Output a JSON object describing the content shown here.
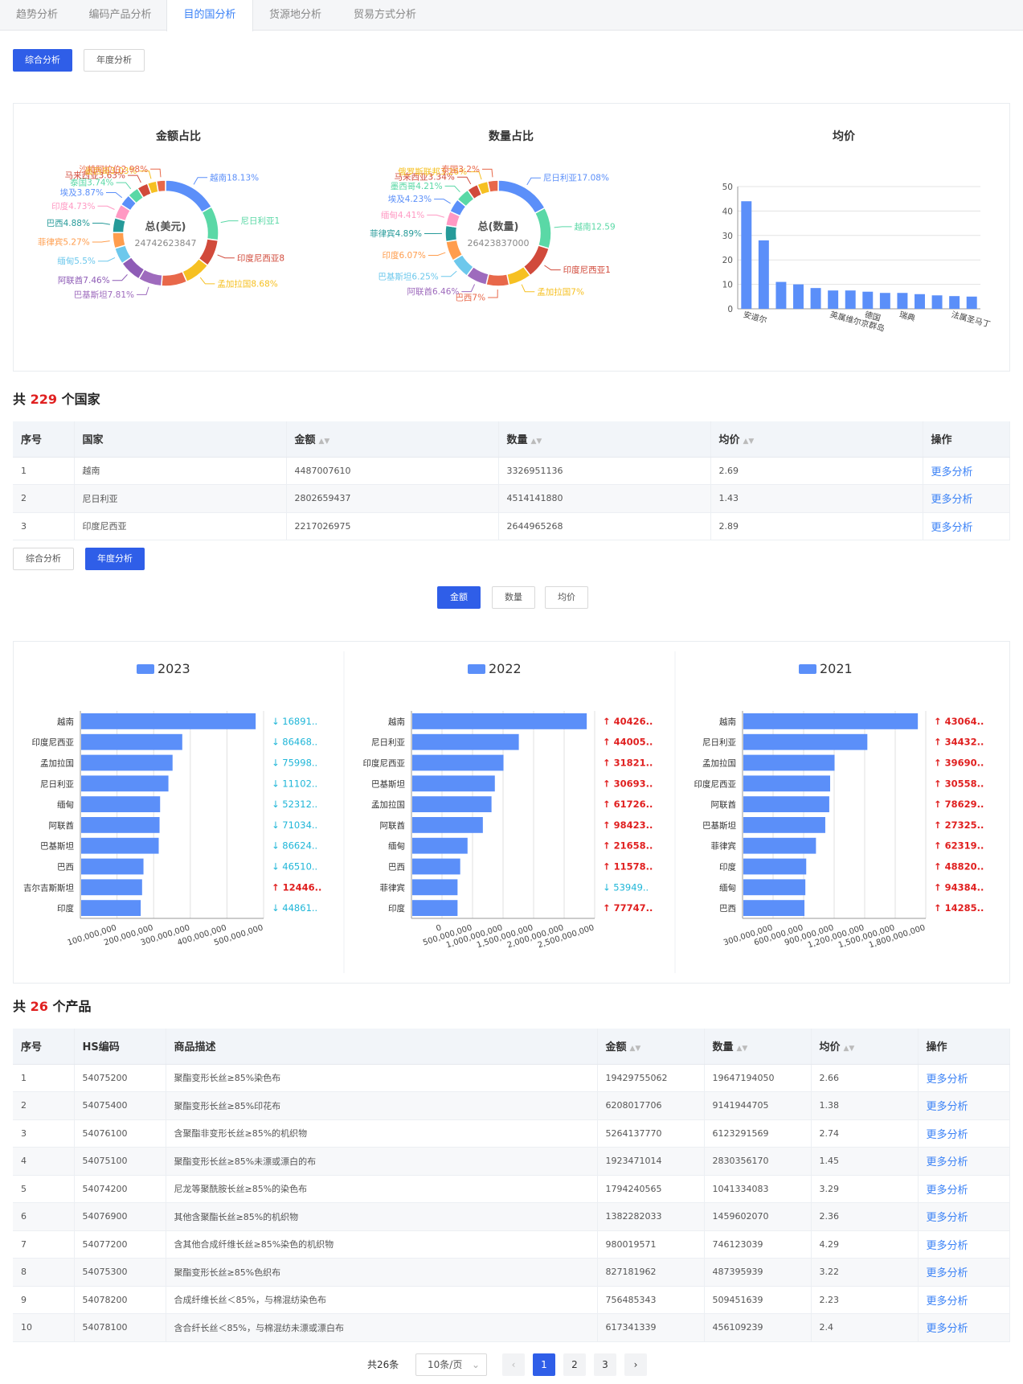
{
  "tabs": [
    "趋势分析",
    "编码产品分析",
    "目的国分析",
    "货源地分析",
    "贸易方式分析"
  ],
  "active_tab": 2,
  "subtabs": [
    "综合分析",
    "年度分析"
  ],
  "metric_buttons": [
    "金额",
    "数量",
    "均价"
  ],
  "donut_amount": {
    "title": "金额占比",
    "center_label": "总(美元)",
    "center_value": "24742623847",
    "slices": [
      {
        "label": "越南18.13%",
        "pct": 18.13,
        "color": "#5b8ff9"
      },
      {
        "label": "尼日利亚1",
        "pct": 11.33,
        "color": "#5ad8a6"
      },
      {
        "label": "印度尼西亚8",
        "pct": 8.96,
        "color": "#d14a3b"
      },
      {
        "label": "孟加拉国8.68%",
        "pct": 8.68,
        "color": "#f6c022"
      },
      {
        "label": "",
        "pct": 8.5,
        "color": "#e8684a"
      },
      {
        "label": "巴基斯坦7.81%",
        "pct": 7.81,
        "color": "#9e6bbd"
      },
      {
        "label": "阿联酋7.46%",
        "pct": 7.46,
        "color": "#8e5cb6"
      },
      {
        "label": "缅甸5.5%",
        "pct": 5.5,
        "color": "#6dc8ec"
      },
      {
        "label": "菲律宾5.27%",
        "pct": 5.27,
        "color": "#ff9d4d"
      },
      {
        "label": "巴西4.88%",
        "pct": 4.88,
        "color": "#269a99"
      },
      {
        "label": "印度4.73%",
        "pct": 4.73,
        "color": "#ff99c3"
      },
      {
        "label": "埃及3.87%",
        "pct": 3.87,
        "color": "#5b8ff9"
      },
      {
        "label": "泰国3.74%",
        "pct": 3.74,
        "color": "#5ad8a6"
      },
      {
        "label": "马来西亚3.63%",
        "pct": 3.63,
        "color": "#d14a3b"
      },
      {
        "label": "墨西哥3.03%",
        "pct": 3.03,
        "color": "#f6c022"
      },
      {
        "label": "沙特阿拉伯2.98%",
        "pct": 2.98,
        "color": "#e8684a"
      }
    ]
  },
  "donut_qty": {
    "title": "数量占比",
    "center_label": "总(数量)",
    "center_value": "26423837000",
    "slices": [
      {
        "label": "尼日利亚17.08%",
        "pct": 17.08,
        "color": "#5b8ff9"
      },
      {
        "label": "越南12.59",
        "pct": 12.59,
        "color": "#5ad8a6"
      },
      {
        "label": "印度尼西亚1",
        "pct": 10.0,
        "color": "#d14a3b"
      },
      {
        "label": "孟加拉国7%",
        "pct": 7.0,
        "color": "#f6c022"
      },
      {
        "label": "巴西7%",
        "pct": 7.0,
        "color": "#e8684a"
      },
      {
        "label": "阿联酋6.46%",
        "pct": 6.46,
        "color": "#9e6bbd"
      },
      {
        "label": "巴基斯坦6.25%",
        "pct": 6.25,
        "color": "#6dc8ec"
      },
      {
        "label": "印度6.07%",
        "pct": 6.07,
        "color": "#ff9d4d"
      },
      {
        "label": "菲律宾4.89%",
        "pct": 4.89,
        "color": "#269a99"
      },
      {
        "label": "缅甸4.41%",
        "pct": 4.41,
        "color": "#ff99c3"
      },
      {
        "label": "埃及4.23%",
        "pct": 4.23,
        "color": "#5b8ff9"
      },
      {
        "label": "墨西哥4.21%",
        "pct": 4.21,
        "color": "#5ad8a6"
      },
      {
        "label": "马来西亚3.34%",
        "pct": 3.34,
        "color": "#d14a3b"
      },
      {
        "label": "俄罗斯联邦3.26%",
        "pct": 3.26,
        "color": "#f6c022"
      },
      {
        "label": "泰国3.2%",
        "pct": 3.2,
        "color": "#e8684a"
      }
    ]
  },
  "chart_data": [
    {
      "type": "bar",
      "title": "均价",
      "categories": [
        "安道尔",
        "",
        "",
        "",
        "",
        "英属维尔京群岛",
        "",
        "德国",
        "",
        "瑞典",
        "",
        "",
        "法属圣马丁",
        ""
      ],
      "values": [
        44,
        28,
        11,
        10,
        8.5,
        7.5,
        7.5,
        7,
        6.5,
        6.5,
        6,
        5.5,
        5.2,
        5
      ],
      "ylim": [
        0,
        50
      ],
      "yticks": [
        0,
        10,
        20,
        30,
        40,
        50
      ],
      "grid": true
    },
    {
      "type": "bar",
      "orientation": "horizontal",
      "legend": "2023",
      "categories": [
        "越南",
        "印度尼西亚",
        "孟加拉国",
        "尼日利亚",
        "缅甸",
        "阿联酋",
        "巴基斯坦",
        "巴西",
        "吉尔吉斯斯坦",
        "印度"
      ],
      "values": [
        630000000,
        365000000,
        330000000,
        315000000,
        285000000,
        283000000,
        280000000,
        225000000,
        220000000,
        215000000
      ],
      "xticks": [
        "100,000,000",
        "200,000,000",
        "300,000,000",
        "400,000,000",
        "500,000,000"
      ],
      "changes": [
        {
          "text": "16891..",
          "dir": "down"
        },
        {
          "text": "86468..",
          "dir": "down"
        },
        {
          "text": "75998..",
          "dir": "down"
        },
        {
          "text": "11102..",
          "dir": "down"
        },
        {
          "text": "52312..",
          "dir": "down"
        },
        {
          "text": "71034..",
          "dir": "down"
        },
        {
          "text": "86624..",
          "dir": "down"
        },
        {
          "text": "46510..",
          "dir": "down"
        },
        {
          "text": "12446..",
          "dir": "up"
        },
        {
          "text": "44861..",
          "dir": "down"
        }
      ]
    },
    {
      "type": "bar",
      "orientation": "horizontal",
      "legend": "2022",
      "categories": [
        "越南",
        "尼日利亚",
        "印度尼西亚",
        "巴基斯坦",
        "孟加拉国",
        "阿联酋",
        "缅甸",
        "巴西",
        "菲律宾",
        "印度"
      ],
      "values": [
        2620000000,
        1600000000,
        1370000000,
        1240000000,
        1190000000,
        1060000000,
        830000000,
        720000000,
        680000000,
        680000000
      ],
      "xticks": [
        "0",
        "500,000,000",
        "1,000,000,000",
        "1,500,000,000",
        "2,000,000,000",
        "2,500,000,000"
      ],
      "changes": [
        {
          "text": "40426..",
          "dir": "up"
        },
        {
          "text": "44005..",
          "dir": "up"
        },
        {
          "text": "31821..",
          "dir": "up"
        },
        {
          "text": "30693..",
          "dir": "up"
        },
        {
          "text": "61726..",
          "dir": "up"
        },
        {
          "text": "98423..",
          "dir": "up"
        },
        {
          "text": "21658..",
          "dir": "up"
        },
        {
          "text": "11578..",
          "dir": "up"
        },
        {
          "text": "53949..",
          "dir": "down"
        },
        {
          "text": "77747..",
          "dir": "up"
        }
      ]
    },
    {
      "type": "bar",
      "orientation": "horizontal",
      "legend": "2021",
      "categories": [
        "越南",
        "尼日利亚",
        "孟加拉国",
        "印度尼西亚",
        "阿联酋",
        "巴基斯坦",
        "菲律宾",
        "印度",
        "缅甸",
        "巴西"
      ],
      "values": [
        1970000000,
        1400000000,
        1030000000,
        980000000,
        970000000,
        925000000,
        820000000,
        710000000,
        700000000,
        690000000
      ],
      "xticks": [
        "300,000,000",
        "600,000,000",
        "900,000,000",
        "1,200,000,000",
        "1,500,000,000",
        "1,800,000,000"
      ],
      "changes": [
        {
          "text": "43064..",
          "dir": "up"
        },
        {
          "text": "34432..",
          "dir": "up"
        },
        {
          "text": "39690..",
          "dir": "up"
        },
        {
          "text": "30558..",
          "dir": "up"
        },
        {
          "text": "78629..",
          "dir": "up"
        },
        {
          "text": "27325..",
          "dir": "up"
        },
        {
          "text": "62319..",
          "dir": "up"
        },
        {
          "text": "48820..",
          "dir": "up"
        },
        {
          "text": "94384..",
          "dir": "up"
        },
        {
          "text": "14285..",
          "dir": "up"
        }
      ]
    }
  ],
  "country_summary": {
    "prefix": "共",
    "count": "229",
    "suffix": "个国家"
  },
  "country_table": {
    "headers": [
      "序号",
      "国家",
      "金额",
      "数量",
      "均价",
      "操作"
    ],
    "rows": [
      [
        "1",
        "越南",
        "4487007610",
        "3326951136",
        "2.69",
        "更多分析"
      ],
      [
        "2",
        "尼日利亚",
        "2802659437",
        "4514141880",
        "1.43",
        "更多分析"
      ],
      [
        "3",
        "印度尼西亚",
        "2217026975",
        "2644965268",
        "2.89",
        "更多分析"
      ]
    ]
  },
  "product_summary": {
    "prefix": "共",
    "count": "26",
    "suffix": "个产品"
  },
  "product_table": {
    "headers": [
      "序号",
      "HS编码",
      "商品描述",
      "金额",
      "数量",
      "均价",
      "操作"
    ],
    "rows": [
      [
        "1",
        "54075200",
        "聚酯变形长丝≥85%染色布",
        "19429755062",
        "19647194050",
        "2.66",
        "更多分析"
      ],
      [
        "2",
        "54075400",
        "聚酯变形长丝≥85%印花布",
        "6208017706",
        "9141944705",
        "1.38",
        "更多分析"
      ],
      [
        "3",
        "54076100",
        "含聚酯非变形长丝≥85%的机织物",
        "5264137770",
        "6123291569",
        "2.74",
        "更多分析"
      ],
      [
        "4",
        "54075100",
        "聚酯变形长丝≥85%未漂或漂白的布",
        "1923471014",
        "2830356170",
        "1.45",
        "更多分析"
      ],
      [
        "5",
        "54074200",
        "尼龙等聚酰胺长丝≥85%的染色布",
        "1794240565",
        "1041334083",
        "3.29",
        "更多分析"
      ],
      [
        "6",
        "54076900",
        "其他含聚酯长丝≥85%的机织物",
        "1382282033",
        "1459602070",
        "2.36",
        "更多分析"
      ],
      [
        "7",
        "54077200",
        "含其他合成纤维长丝≥85%染色的机织物",
        "980019571",
        "746123039",
        "4.29",
        "更多分析"
      ],
      [
        "8",
        "54075300",
        "聚酯变形长丝≥85%色织布",
        "827181962",
        "487395939",
        "3.22",
        "更多分析"
      ],
      [
        "9",
        "54078200",
        "合成纤维长丝＜85%，与棉混纺染色布",
        "756485343",
        "509451639",
        "2.23",
        "更多分析"
      ],
      [
        "10",
        "54078100",
        "含合纤长丝＜85%，与棉混纺未漂或漂白布",
        "617341339",
        "456109239",
        "2.4",
        "更多分析"
      ]
    ]
  },
  "pagination": {
    "total": "共26条",
    "page_size": "10条/页",
    "pages": [
      "1",
      "2",
      "3"
    ],
    "current": "1"
  },
  "colors": {
    "primary": "#2f5ee8",
    "bar": "#5b8ff9",
    "up": "#e02020",
    "down": "#1fb6d8",
    "link": "#3b82f6"
  }
}
